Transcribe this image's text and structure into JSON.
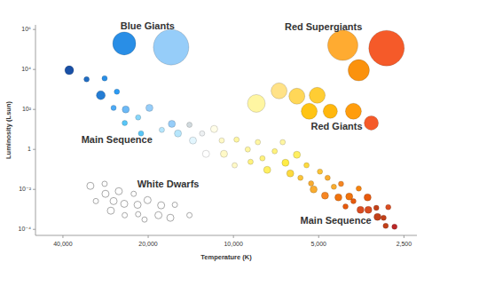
{
  "chart_data": {
    "type": "scatter",
    "x_label": "Temperature (K)",
    "y_label": "Luminosity (Lsun)",
    "log": true,
    "grid": false,
    "tick_labels": true,
    "xlim": [
      50000,
      2250
    ],
    "xticks": [
      {
        "value": 40000,
        "label": "40,000"
      },
      {
        "value": 20000,
        "label": "20,000"
      },
      {
        "value": 10000,
        "label": "10,000"
      },
      {
        "value": 5000,
        "label": "5,000"
      },
      {
        "value": 2500,
        "label": "2,500"
      }
    ],
    "ylim": [
      5e-05,
      1700000
    ],
    "yticks": [
      {
        "value": 1000000,
        "label": "10⁶"
      },
      {
        "value": 10000,
        "label": "10⁴"
      },
      {
        "value": 100,
        "label": "10²"
      },
      1,
      {
        "value": 0.01,
        "label": "10⁻²"
      },
      {
        "value": 0.0001,
        "label": "10⁻⁴"
      }
    ],
    "series": [
      {
        "marker": "circle",
        "x": [
          38000,
          33000,
          28500,
          29400,
          25800,
          26500,
          24000,
          24200,
          21700,
          21200,
          19800,
          17900,
          16500,
          15700,
          14300,
          13900,
          12900,
          12500,
          11700,
          11000,
          10800,
          9750,
          9900,
          8900,
          8700,
          8200,
          7900,
          7600,
          7150,
          6700,
          6550,
          6300,
          5970,
          5800,
          5520,
          5320,
          5210,
          4950,
          4750,
          4650,
          4420,
          4170,
          4260,
          4020,
          3900,
          3770,
          3610,
          3560,
          3360,
          3340,
          3130,
          3100,
          2950,
          2840,
          2900,
          2700
        ],
        "values": [
          9100,
          3200,
          3600,
          510,
          770,
          120,
          100,
          21,
          40,
          6.3,
          120,
          9.5,
          19,
          6.3,
          17,
          2.8,
          6.3,
          0.6,
          10.5,
          2.8,
          0.6,
          3.1,
          0.16,
          1,
          0.24,
          2.3,
          0.36,
          0.095,
          0.81,
          2.3,
          0.215,
          0.063,
          0.54,
          0.038,
          0.16,
          0.02,
          0.01,
          0.078,
          0.0049,
          0.038,
          0.0135,
          0.019,
          0.004,
          0.0014,
          0.0044,
          0.0026,
          0.011,
          0.00095,
          0.004,
          0.00095,
          0.0012,
          0.00042,
          0.00038,
          0.0013,
          0.00015,
          0.000135
        ],
        "sizes": [
          5,
          3,
          3,
          5,
          3,
          3,
          4,
          3,
          3,
          3,
          4,
          3,
          4,
          4,
          3,
          4,
          3,
          4,
          4,
          3,
          4,
          3,
          3,
          3,
          3,
          3,
          3,
          4,
          3,
          3,
          4,
          4,
          4,
          3,
          3,
          3,
          4,
          3,
          4,
          3,
          3,
          3,
          4,
          3,
          4,
          3,
          3,
          4,
          4,
          4,
          3,
          4,
          3,
          3,
          3,
          3
        ],
        "colors": [
          "#0d47a1",
          "#1565c0",
          "#1e88e5",
          "#1976d2",
          "#2196f3",
          "#42a5f5",
          "#64b5f6",
          "#4fc3f7",
          "#81d4fa",
          "#4fc3f7",
          "#90caf9",
          "#b3e5fc",
          "#90caf9",
          "#b3e5fc",
          "#cfd8dc",
          "#e1f5fe",
          "#eceff1",
          "#ffffff",
          "#fffde7",
          "#fff9c4",
          "#fff9c4",
          "#fff59d",
          "#fff9c4",
          "#fff59d",
          "#fff176",
          "#fff59d",
          "#fff176",
          "#ffee58",
          "#fff176",
          "#fff59d",
          "#ffeb3b",
          "#fdd835",
          "#ffee58",
          "#fbc02d",
          "#fdd835",
          "#f9a825",
          "#f9a825",
          "#fbc02d",
          "#f57f17",
          "#f9a825",
          "#f9a825",
          "#f57f17",
          "#ef6c00",
          "#e65100",
          "#ef6c00",
          "#e65100",
          "#f57c00",
          "#d84315",
          "#e65100",
          "#d84315",
          "#bf360c",
          "#bf360c",
          "#bf360c",
          "#d84315",
          "#bf360c",
          "#b71c1c"
        ]
      },
      {
        "marker": "open",
        "color": "#9e9e9e",
        "x": [
          32000,
          28500,
          25400,
          28300,
          22500,
          30600,
          26500,
          24300,
          21800,
          20100,
          18000,
          16100,
          27100,
          24200,
          21700,
          18400,
          16700,
          14300,
          20600
        ],
        "values": [
          0.015,
          0.019,
          0.0081,
          0.006,
          0.006,
          0.0026,
          0.0026,
          0.0019,
          0.0017,
          0.0029,
          0.0016,
          0.0017,
          0.00086,
          0.00051,
          0.00057,
          0.00051,
          0.00038,
          0.00051,
          0.00031
        ],
        "sizes": [
          4,
          3,
          4,
          4,
          3,
          3,
          4,
          4,
          4,
          4,
          4,
          3,
          4,
          3,
          3,
          4,
          4,
          3,
          3
        ]
      },
      {
        "marker": "circle",
        "x": [
          8300,
          6900,
          5970,
          5060,
          5400,
          4550,
          3770,
          3260
        ],
        "values": [
          200,
          850,
          460,
          510,
          81,
          81,
          81,
          21
        ],
        "sizes": [
          10,
          9,
          9,
          9,
          9,
          8,
          9,
          8
        ],
        "colors": [
          "#fff59d",
          "#ffe082",
          "#ffd54f",
          "#ffca28",
          "#ffc107",
          "#ffb300",
          "#ff9800",
          "#f4511e"
        ]
      },
      {
        "marker": "circle",
        "x": [
          4110,
          2880,
          3610
        ],
        "values": [
          160000,
          117000,
          9100
        ],
        "sizes": [
          17,
          20,
          12
        ],
        "colors": [
          "#ffa726",
          "#f4511e",
          "#fb8c00"
        ]
      },
      {
        "marker": "circle",
        "x": [
          24300,
          16600
        ],
        "values": [
          200000,
          130000
        ],
        "sizes": [
          13,
          20
        ],
        "colors": [
          "#1e88e5",
          "#90caf9"
        ]
      }
    ],
    "annotations": [
      {
        "text": "Blue Giants",
        "x": 20100,
        "y": 1350000
      },
      {
        "text": "Red Supergiants",
        "x": 4810,
        "y": 1270000
      },
      {
        "text": "Red Giants",
        "x": 4320,
        "y": 13
      },
      {
        "text": "Main Sequence",
        "x": 25800,
        "y": 2.8
      },
      {
        "text": "White Dwarfs",
        "x": 17000,
        "y": 0.0166
      },
      {
        "text": "Main Sequence",
        "x": 4350,
        "y": 0.00025
      }
    ]
  }
}
